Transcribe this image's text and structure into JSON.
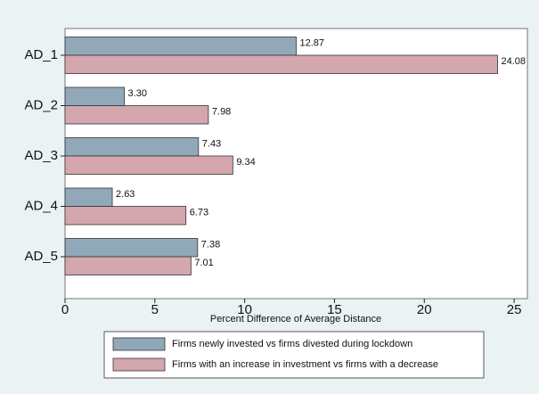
{
  "chart_data": {
    "type": "barh",
    "categories": [
      "AD_1",
      "AD_2",
      "AD_3",
      "AD_4",
      "AD_5"
    ],
    "series": [
      {
        "name": "Firms newly invested vs firms divested during lockdown",
        "color": "#91a8b9",
        "values": [
          12.87,
          3.3,
          7.43,
          2.63,
          7.38
        ],
        "value_labels": [
          "12.87",
          "3.30",
          "7.43",
          "2.63",
          "7.38"
        ]
      },
      {
        "name": "Firms with an increase in investment vs firms with a decrease",
        "color": "#d4a6ae",
        "values": [
          24.08,
          7.98,
          9.34,
          6.73,
          7.01
        ],
        "value_labels": [
          "24.08",
          "7.98",
          "9.34",
          "6.73",
          "7.01"
        ]
      }
    ],
    "xlabel": "Percent Difference of Average Distance",
    "xlim": [
      0,
      25.74
    ],
    "xticks": [
      0,
      5,
      10,
      15,
      20,
      25
    ]
  }
}
